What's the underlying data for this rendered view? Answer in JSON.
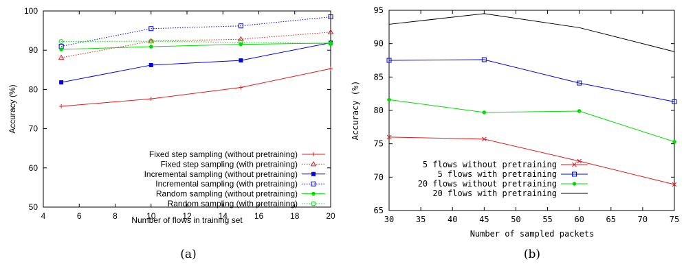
{
  "chart_data": [
    {
      "type": "line",
      "panel_label": "(a)",
      "xlabel": "Number of flows in training set",
      "ylabel": "Accuracy (%)",
      "xlim": [
        4,
        20
      ],
      "ylim": [
        50,
        100
      ],
      "xticks": [
        "4",
        "6",
        "8",
        "10",
        "12",
        "14",
        "16",
        "18",
        "20"
      ],
      "yticks": [
        "50",
        "60",
        "70",
        "80",
        "90",
        "100"
      ],
      "grid": false,
      "legend_position": "bottom-right",
      "x": [
        5,
        10,
        15,
        20
      ],
      "series": [
        {
          "name": "Fixed step sampling (without pretraining)",
          "values": [
            75.7,
            77.6,
            80.5,
            85.3
          ],
          "color": "#e31a1c",
          "dash": "solid",
          "marker": "plus"
        },
        {
          "name": "Fixed step sampling (with pretraining)",
          "values": [
            88.1,
            92.3,
            92.8,
            94.6
          ],
          "color": "#e31a1c",
          "dash": "dotted",
          "marker": "triangle"
        },
        {
          "name": "Incremental sampling (without pretraining)",
          "values": [
            81.8,
            86.2,
            87.4,
            91.9
          ],
          "color": "#0000ee",
          "dash": "solid",
          "marker": "filled-square"
        },
        {
          "name": "Incremental sampling (with pretraining)",
          "values": [
            91.0,
            95.5,
            96.2,
            98.5
          ],
          "color": "#0000ee",
          "dash": "dotted",
          "marker": "open-square"
        },
        {
          "name": "Random sampling (without pretraining)",
          "values": [
            90.2,
            90.9,
            91.5,
            91.8
          ],
          "color": "#00dd00",
          "dash": "solid",
          "marker": "filled-circle"
        },
        {
          "name": "Random sampling (with pretraining)",
          "values": [
            92.2,
            92.3,
            92.0,
            91.7
          ],
          "color": "#00dd00",
          "dash": "dotted",
          "marker": "open-circle"
        }
      ]
    },
    {
      "type": "line",
      "panel_label": "(b)",
      "xlabel": "Number of sampled packets",
      "ylabel": "Accuracy (%)",
      "xlim": [
        30,
        75
      ],
      "ylim": [
        65,
        95
      ],
      "xticks": [
        "30",
        "35",
        "40",
        "45",
        "50",
        "55",
        "60",
        "65",
        "70",
        "75"
      ],
      "yticks": [
        "65",
        "70",
        "75",
        "80",
        "85",
        "90",
        "95"
      ],
      "grid": false,
      "legend_position": "bottom-left",
      "x": [
        30,
        45,
        60,
        75
      ],
      "series": [
        {
          "name": "5 flows without pretraining",
          "values": [
            76.0,
            75.7,
            72.4,
            68.9
          ],
          "color": "#e31a1c",
          "dash": "solid",
          "marker": "x"
        },
        {
          "name": "5 flows with pretraining",
          "values": [
            87.5,
            87.6,
            84.1,
            81.3
          ],
          "color": "#0000ee",
          "dash": "solid",
          "marker": "open-square"
        },
        {
          "name": "20 flows without pretraining",
          "values": [
            81.6,
            79.7,
            79.9,
            75.3
          ],
          "color": "#00dd00",
          "dash": "solid",
          "marker": "filled-circle"
        },
        {
          "name": "20 flows with pretraining",
          "values": [
            92.9,
            94.5,
            92.4,
            88.8
          ],
          "color": "#000000",
          "dash": "solid",
          "marker": "none"
        }
      ]
    }
  ]
}
